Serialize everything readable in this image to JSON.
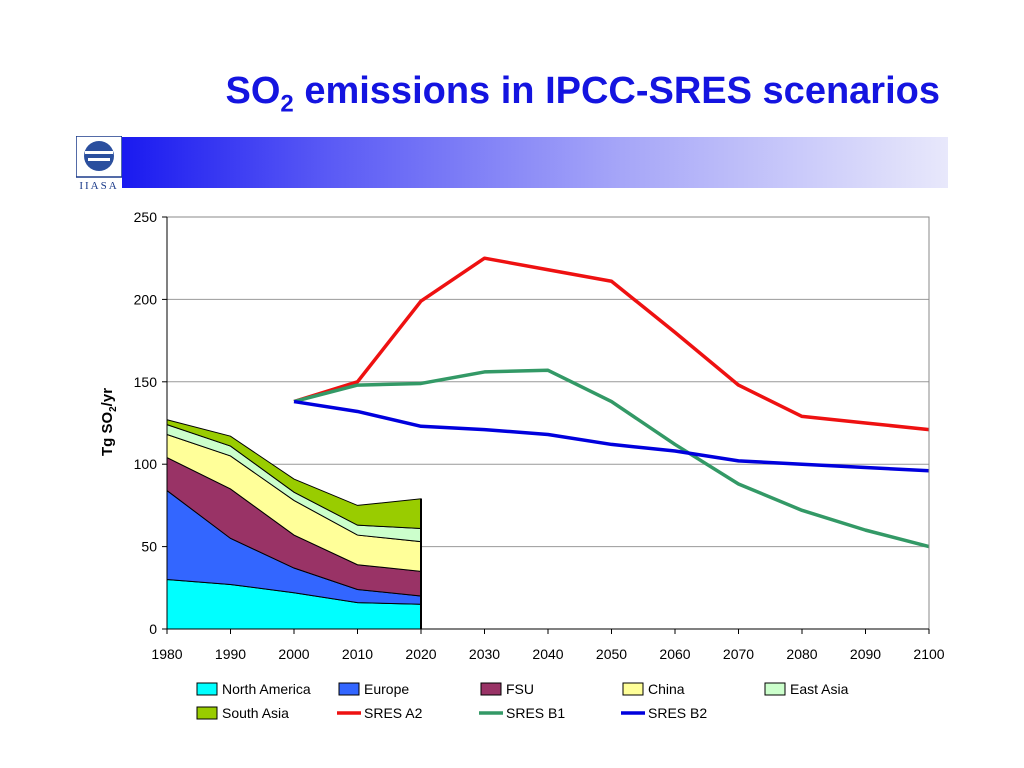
{
  "header": {
    "title_pre": "SO",
    "title_sub": "2",
    "title_post": " emissions in IPCC-SRES scenarios",
    "logo_text": "IIASA"
  },
  "colors": {
    "title": "#1414e0",
    "banner_start": "#1a1af0",
    "banner_end": "#e8e8fb"
  },
  "chart_data": {
    "type": "area",
    "ylabel": "Tg SO2/yr",
    "ylim": [
      0,
      250
    ],
    "xlim": [
      1980,
      2100
    ],
    "yticks": [
      0,
      50,
      100,
      150,
      200,
      250
    ],
    "xticks": [
      1980,
      1990,
      2000,
      2010,
      2020,
      2030,
      2040,
      2050,
      2060,
      2070,
      2080,
      2090,
      2100
    ],
    "grid": true,
    "legend_position": "bottom",
    "stacked_areas": {
      "x": [
        1980,
        1990,
        2000,
        2010,
        2020
      ],
      "series": [
        {
          "name": "North America",
          "color": "#00ffff",
          "values": [
            30,
            27,
            22,
            16,
            15
          ]
        },
        {
          "name": "Europe",
          "color": "#3366ff",
          "values": [
            54,
            28,
            15,
            8,
            5
          ]
        },
        {
          "name": "FSU",
          "color": "#993366",
          "values": [
            20,
            30,
            20,
            15,
            15
          ]
        },
        {
          "name": "China",
          "color": "#ffff99",
          "values": [
            14,
            20,
            21,
            18,
            18
          ]
        },
        {
          "name": "East Asia",
          "color": "#ccffcc",
          "values": [
            6,
            6,
            5,
            6,
            8
          ]
        },
        {
          "name": "South Asia",
          "color": "#99cc00",
          "values": [
            3,
            6,
            8,
            12,
            18
          ]
        }
      ]
    },
    "lines": [
      {
        "name": "SRES A2",
        "color": "#ee1111",
        "x": [
          2000,
          2010,
          2020,
          2030,
          2040,
          2050,
          2060,
          2070,
          2080,
          2090,
          2100
        ],
        "values": [
          138,
          150,
          199,
          225,
          218,
          211,
          180,
          148,
          129,
          125,
          121
        ]
      },
      {
        "name": "SRES B1",
        "color": "#339966",
        "x": [
          2000,
          2010,
          2020,
          2030,
          2040,
          2050,
          2060,
          2070,
          2080,
          2090,
          2100
        ],
        "values": [
          138,
          148,
          149,
          156,
          157,
          138,
          112,
          88,
          72,
          60,
          50
        ]
      },
      {
        "name": "SRES B2",
        "color": "#0000dd",
        "x": [
          2000,
          2010,
          2020,
          2030,
          2040,
          2050,
          2060,
          2070,
          2080,
          2090,
          2100
        ],
        "values": [
          138,
          132,
          123,
          121,
          118,
          112,
          108,
          102,
          100,
          98,
          96
        ]
      }
    ],
    "legend": [
      "North America",
      "Europe",
      "FSU",
      "China",
      "East Asia",
      "South Asia",
      "SRES A2",
      "SRES B1",
      "SRES B2"
    ]
  }
}
